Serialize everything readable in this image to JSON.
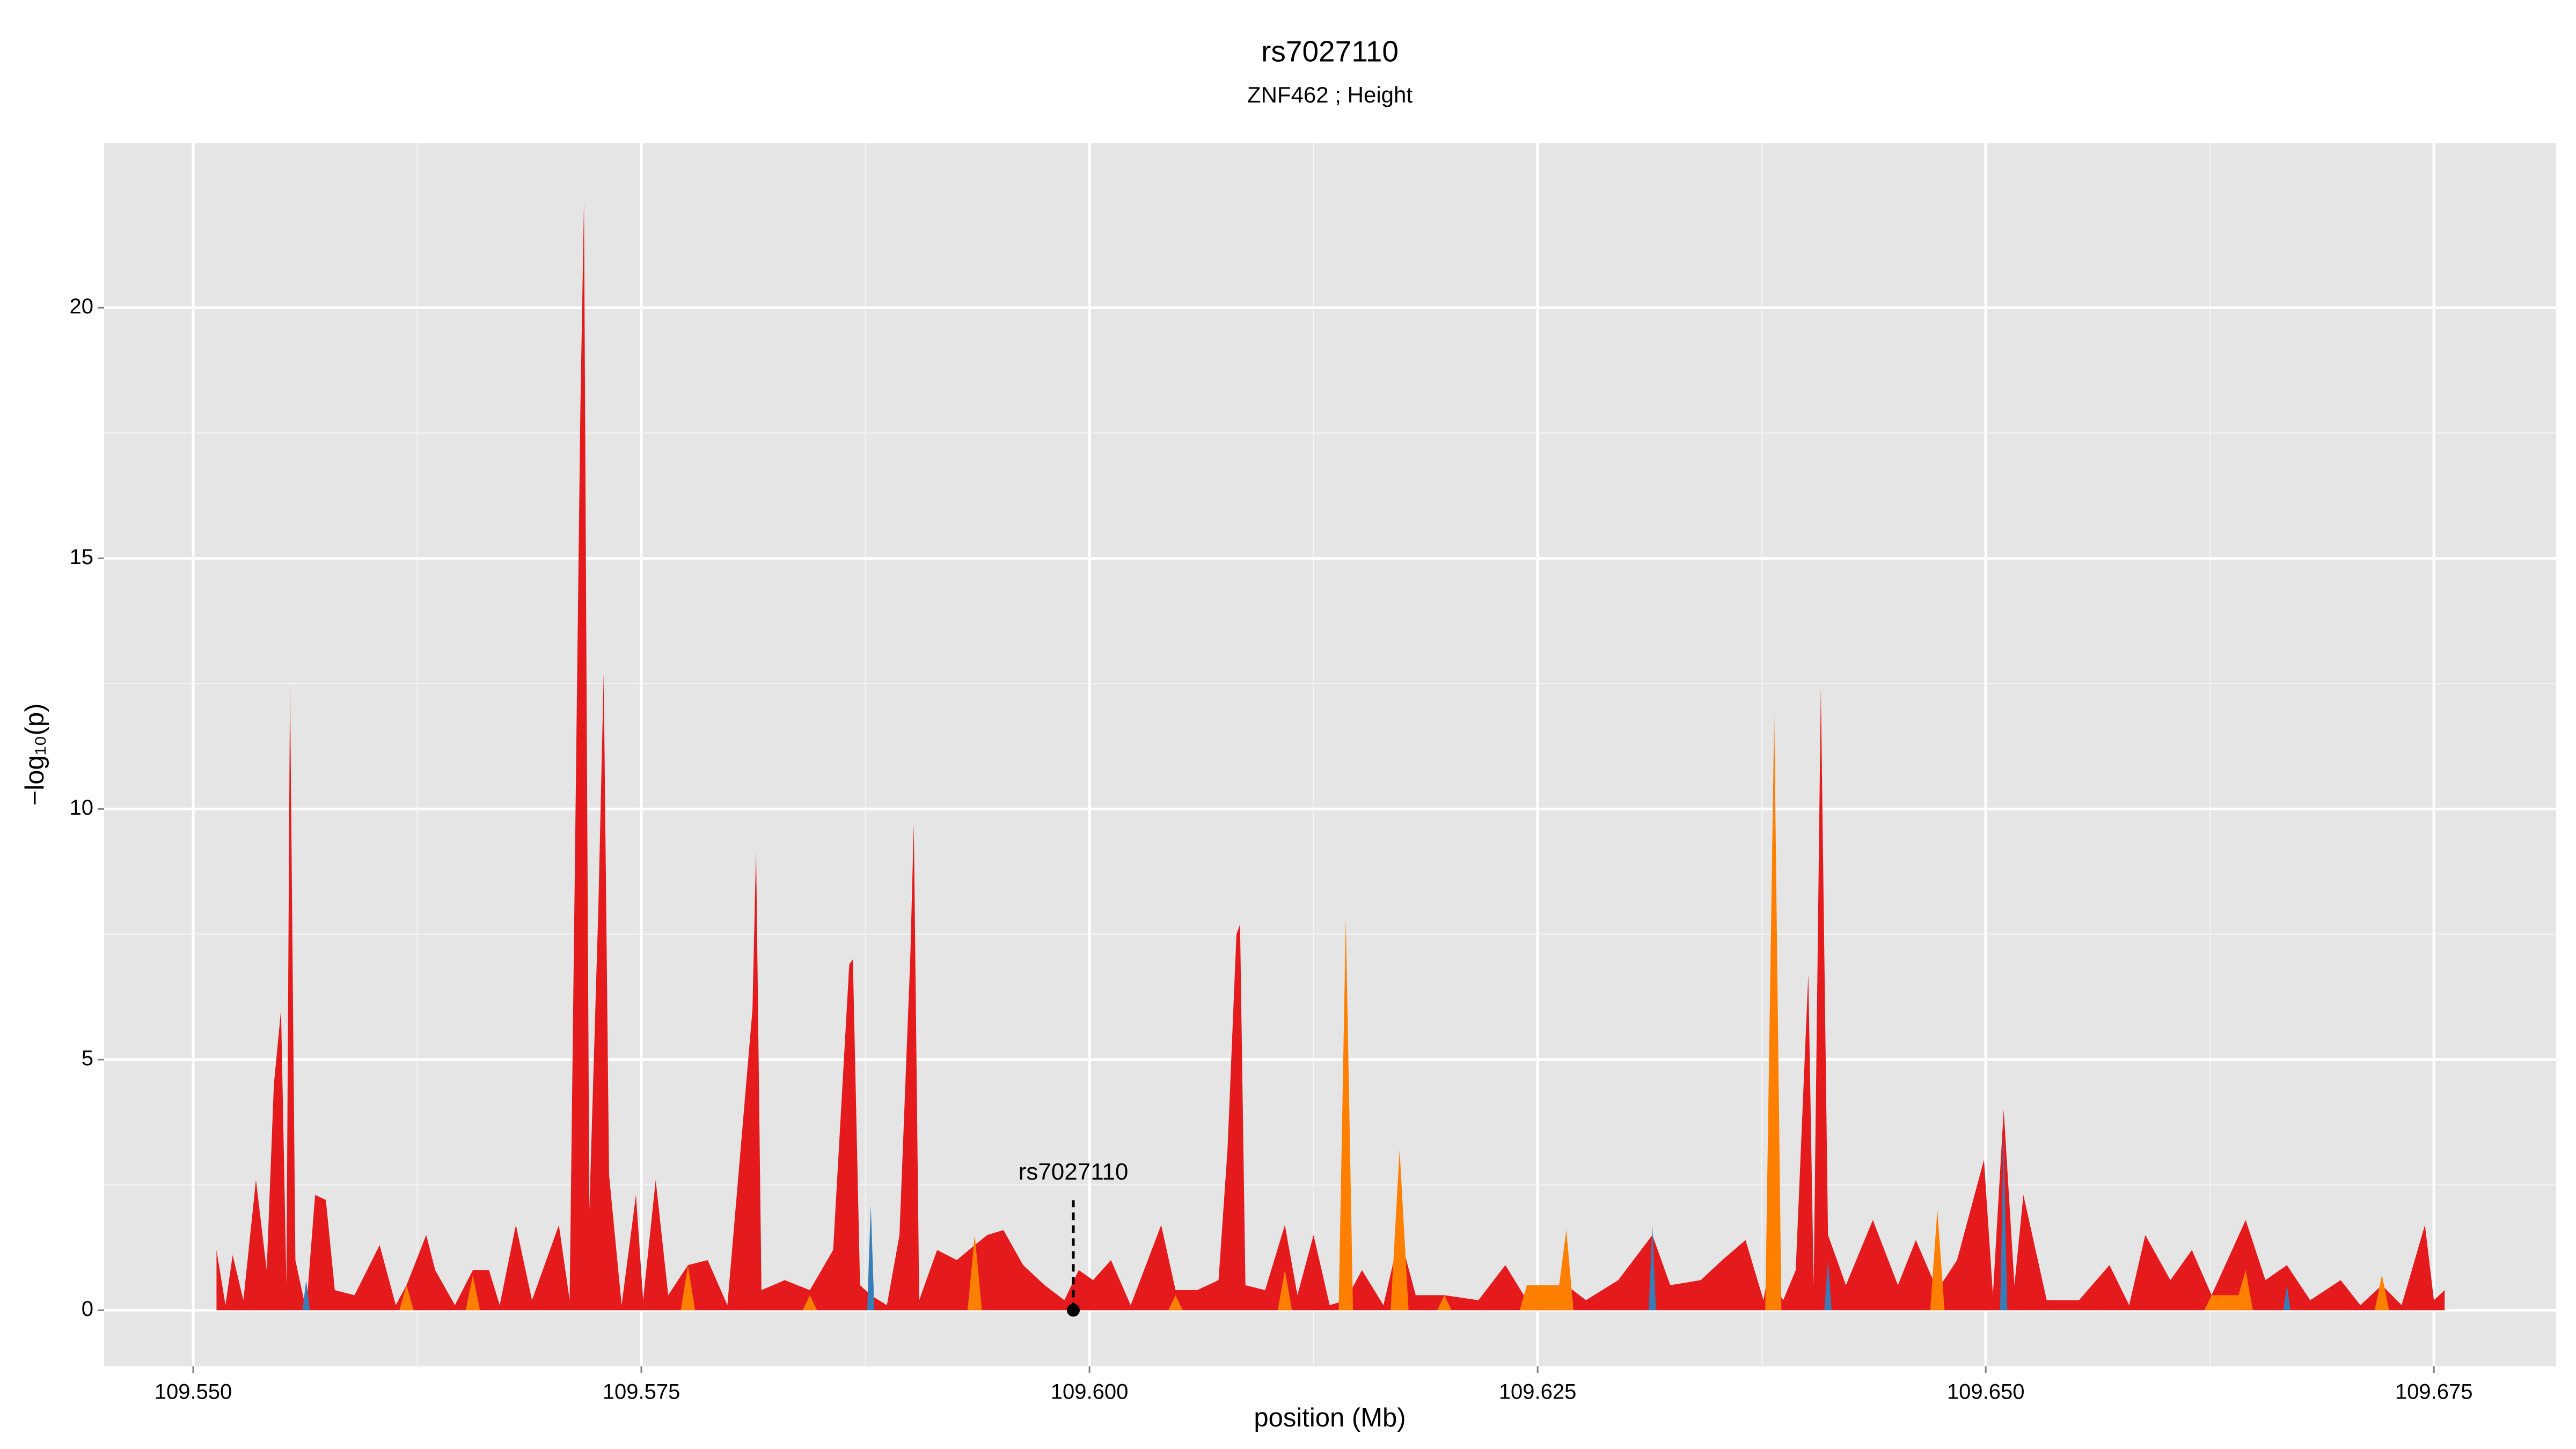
{
  "chart_data": {
    "type": "area",
    "title": "rs7027110",
    "subtitle": "ZNF462 ; Height",
    "xlabel": "position (Mb)",
    "ylabel": "−log₁₀(p)",
    "xlim": [
      109.54503,
      109.68182
    ],
    "ylim": [
      -1.12,
      23.28
    ],
    "xticks": [
      {
        "value": 109.55,
        "label": "109.550"
      },
      109.575,
      {
        "value": 109.6,
        "label": "109.600"
      },
      109.625,
      {
        "value": 109.65,
        "label": "109.650"
      },
      109.675
    ],
    "yticks": [
      0,
      5,
      10,
      15,
      20
    ],
    "grid": true,
    "annotation": {
      "text": "rs7027110",
      "x": 109.5991,
      "y": 0
    },
    "series": [
      {
        "color": "#e41a1c",
        "x": [
          109.5513,
          109.5518,
          109.5522,
          109.5528,
          109.5535,
          109.5541,
          109.5545,
          109.5549,
          109.5552,
          109.5554,
          109.5557,
          109.5563,
          109.5568,
          109.5574,
          109.5579,
          109.559,
          109.5604,
          109.5613,
          109.5619,
          109.563,
          109.5635,
          109.5646,
          109.5656,
          109.5665,
          109.5671,
          109.568,
          109.5689,
          109.5704,
          109.571,
          109.5716,
          109.5718,
          109.5721,
          109.5726,
          109.5729,
          109.5732,
          109.5739,
          109.5747,
          109.5751,
          109.5758,
          109.5765,
          109.5776,
          109.5787,
          109.5798,
          109.5812,
          109.5814,
          109.5817,
          109.583,
          109.5844,
          109.5857,
          109.5866,
          109.5868,
          109.5872,
          109.5878,
          109.5887,
          109.5894,
          109.59,
          109.5902,
          109.5905,
          109.5915,
          109.5926,
          109.5936,
          109.5943,
          109.5952,
          109.5963,
          109.5975,
          109.5986,
          109.5994,
          109.6002,
          109.6012,
          109.6023,
          109.604,
          109.6048,
          109.606,
          109.6072,
          109.6077,
          109.6082,
          109.6084,
          109.6087,
          109.6098,
          109.6109,
          109.6116,
          109.6125,
          109.6134,
          109.6143,
          109.6152,
          109.6164,
          109.6173,
          109.6182,
          109.6198,
          109.6217,
          109.6232,
          109.6244,
          109.6258,
          109.6266,
          109.6277,
          109.6295,
          109.6314,
          109.6324,
          109.6341,
          109.6353,
          109.6366,
          109.6376,
          109.638,
          109.6382,
          109.6387,
          109.6394,
          109.6401,
          109.6404,
          109.6408,
          109.6412,
          109.6422,
          109.6437,
          109.6451,
          109.6461,
          109.6473,
          109.6484,
          109.6499,
          109.6504,
          109.651,
          109.6516,
          109.6521,
          109.6534,
          109.6552,
          109.6569,
          109.658,
          109.6589,
          109.6603,
          109.6615,
          109.6626,
          109.6645,
          109.6656,
          109.6668,
          109.6681,
          109.6698,
          109.6709,
          109.6721,
          109.6732,
          109.6745,
          109.675,
          109.6756
        ],
        "values": [
          1.2,
          0.1,
          1.1,
          0.2,
          2.6,
          0.8,
          4.5,
          6.0,
          0.5,
          12.5,
          1.0,
          0.0,
          2.3,
          2.2,
          0.4,
          0.3,
          1.3,
          0.1,
          0.5,
          1.5,
          0.8,
          0.1,
          0.8,
          0.8,
          0.1,
          1.7,
          0.2,
          1.7,
          0.2,
          18,
          22.1,
          2,
          8,
          12.7,
          2.7,
          0.1,
          2.3,
          0.2,
          2.6,
          0.3,
          0.9,
          1.0,
          0.1,
          6,
          9.2,
          0.4,
          0.6,
          0.4,
          1.2,
          6.9,
          7.0,
          0.5,
          0.3,
          0.1,
          1.5,
          7,
          9.7,
          0.2,
          1.2,
          1.0,
          1.3,
          1.5,
          1.6,
          0.9,
          0.5,
          0.2,
          0.8,
          0.6,
          1.0,
          0.1,
          1.7,
          0.4,
          0.4,
          0.6,
          3.2,
          7.5,
          7.7,
          0.5,
          0.4,
          1.7,
          0.3,
          1.5,
          0.1,
          0.2,
          0.8,
          0.1,
          1.5,
          0.3,
          0.3,
          0.2,
          0.9,
          0.2,
          0.2,
          0.5,
          0.2,
          0.6,
          1.5,
          0.5,
          0.6,
          1.0,
          1.4,
          0.2,
          1,
          0.5,
          0.2,
          0.8,
          6.7,
          0.5,
          12.4,
          1.5,
          0.5,
          1.8,
          0.5,
          1.4,
          0.4,
          1.0,
          3.0,
          0.3,
          4.0,
          0.5,
          2.3,
          0.2,
          0.2,
          0.9,
          0.1,
          1.5,
          0.6,
          1.2,
          0.3,
          1.8,
          0.6,
          0.9,
          0.2,
          0.6,
          0.1,
          0.5,
          0.1,
          1.7,
          0.2,
          0.4
        ]
      },
      {
        "color": "#ff7f00",
        "x": [
          109.5615,
          109.5619,
          109.5623,
          109.5652,
          109.5656,
          109.566,
          109.5772,
          109.5776,
          109.578,
          109.584,
          109.5844,
          109.5848,
          109.5932,
          109.5936,
          109.594,
          109.6044,
          109.6048,
          109.6052,
          109.6105,
          109.6109,
          109.6113,
          109.6139,
          109.6143,
          109.6147,
          109.6168,
          109.6173,
          109.6178,
          109.6194,
          109.6198,
          109.6202,
          109.624,
          109.6244,
          109.6262,
          109.6266,
          109.627,
          109.6377,
          109.6382,
          109.6386,
          109.6469,
          109.6473,
          109.6477,
          109.6622,
          109.6626,
          109.6641,
          109.6645,
          109.6649,
          109.6717,
          109.6721,
          109.6725
        ],
        "values": [
          0,
          0.5,
          0,
          0,
          0.7,
          0,
          0,
          0.9,
          0,
          0,
          0.3,
          0,
          0,
          1.5,
          0,
          0,
          0.3,
          0,
          0,
          0.8,
          0,
          0,
          7.8,
          0,
          0,
          3.2,
          0,
          0,
          0.3,
          0,
          0,
          0.5,
          0.5,
          1.6,
          0,
          0,
          11.9,
          0,
          0,
          2.0,
          0,
          0,
          0.3,
          0.3,
          0.8,
          0,
          0,
          0.7,
          0
        ]
      },
      {
        "color": "#377eb8",
        "x": [
          109.5561,
          109.5563,
          109.5565,
          109.5876,
          109.5878,
          109.588,
          109.6312,
          109.6314,
          109.6316,
          109.641,
          109.6412,
          109.6414,
          109.6508,
          109.651,
          109.6512,
          109.6666,
          109.6668,
          109.667
        ],
        "values": [
          0,
          0.6,
          0,
          0,
          2.1,
          0,
          0,
          1.7,
          0,
          0,
          1.0,
          0,
          0,
          3.5,
          0,
          0,
          0.5,
          0
        ]
      }
    ]
  }
}
